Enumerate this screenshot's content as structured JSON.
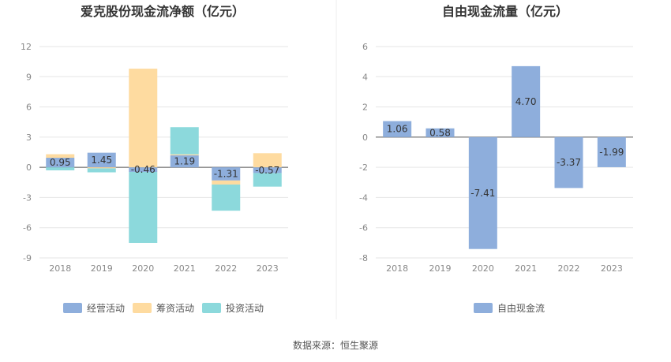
{
  "footer": {
    "source": "数据来源：恒生聚源"
  },
  "colors": {
    "operating": "#8eaedc",
    "financing": "#fedba0",
    "investing": "#8cd9dc",
    "free": "#8eaedc"
  },
  "chart_data": [
    {
      "type": "bar",
      "stacked": true,
      "title": "爱克股份现金流净额（亿元）",
      "categories": [
        "2018",
        "2019",
        "2020",
        "2021",
        "2022",
        "2023"
      ],
      "yticks": [
        "12",
        "9",
        "6",
        "3",
        "0",
        "-3",
        "-6",
        "-9"
      ],
      "ylim": [
        -9,
        12
      ],
      "grid": true,
      "legend_position": "bottom",
      "series": [
        {
          "name": "经营活动",
          "values": [
            0.95,
            1.45,
            -0.46,
            1.19,
            -1.31,
            -0.57
          ],
          "labels": [
            "0.95",
            "1.45",
            "-0.46",
            "1.19",
            "-1.31",
            "-0.57"
          ]
        },
        {
          "name": "筹资活动",
          "values": [
            0.35,
            -0.1,
            9.8,
            0.1,
            -0.4,
            1.4
          ]
        },
        {
          "name": "投资活动",
          "values": [
            -0.3,
            -0.4,
            -7.05,
            2.7,
            -2.6,
            -1.35
          ]
        }
      ]
    },
    {
      "type": "bar",
      "title": "自由现金流量（亿元）",
      "categories": [
        "2018",
        "2019",
        "2020",
        "2021",
        "2022",
        "2023"
      ],
      "yticks": [
        "6",
        "4",
        "2",
        "0",
        "-2",
        "-4",
        "-6",
        "-8"
      ],
      "ylim": [
        -8,
        6
      ],
      "grid": true,
      "legend_position": "bottom",
      "series": [
        {
          "name": "自由现金流",
          "values": [
            1.06,
            0.58,
            -7.41,
            4.7,
            -3.37,
            -1.99
          ],
          "labels": [
            "1.06",
            "0.58",
            "-7.41",
            "4.70",
            "-3.37",
            "-1.99"
          ]
        }
      ]
    }
  ]
}
